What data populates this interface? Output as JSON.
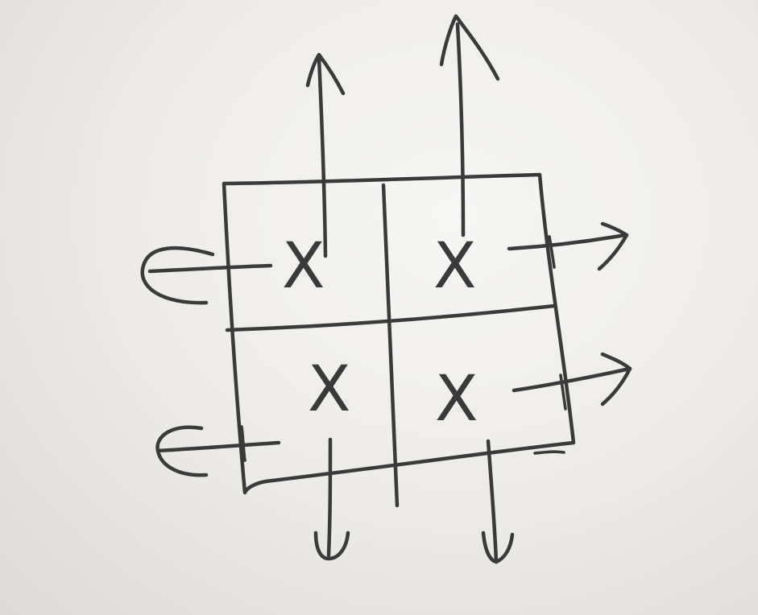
{
  "diagram": {
    "grid": {
      "rows": 2,
      "cols": 2
    },
    "cells": [
      {
        "row": 0,
        "col": 0,
        "mark": "X"
      },
      {
        "row": 0,
        "col": 1,
        "mark": "X"
      },
      {
        "row": 1,
        "col": 0,
        "mark": "X"
      },
      {
        "row": 1,
        "col": 1,
        "mark": "X"
      }
    ],
    "arrows": [
      {
        "cell": "top-left",
        "direction": "up"
      },
      {
        "cell": "top-left",
        "direction": "left"
      },
      {
        "cell": "top-right",
        "direction": "up"
      },
      {
        "cell": "top-right",
        "direction": "right"
      },
      {
        "cell": "bottom-left",
        "direction": "left"
      },
      {
        "cell": "bottom-left",
        "direction": "down"
      },
      {
        "cell": "bottom-right",
        "direction": "right"
      },
      {
        "cell": "bottom-right",
        "direction": "down"
      }
    ],
    "colors": {
      "ink": "#3a3a3a",
      "paper": "#eceae6"
    }
  }
}
